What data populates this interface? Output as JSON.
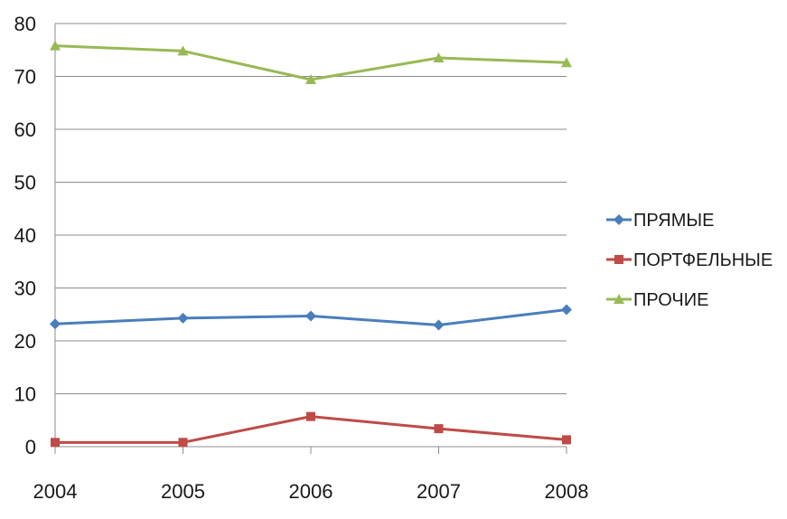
{
  "chart_data": {
    "type": "line",
    "title": "",
    "xlabel": "",
    "ylabel": "",
    "x": [
      2004,
      2005,
      2006,
      2007,
      2008
    ],
    "categories": [
      "2004",
      "2005",
      "2006",
      "2007",
      "2008"
    ],
    "ylim": [
      0,
      80
    ],
    "yticks": [
      0,
      10,
      20,
      30,
      40,
      50,
      60,
      70,
      80
    ],
    "grid": true,
    "legend_position": "right",
    "series": [
      {
        "name": "ПРЯМЫЕ",
        "values": [
          23.2,
          24.3,
          24.7,
          23.0,
          25.9
        ],
        "color": "#4a7ebb",
        "marker": "diamond"
      },
      {
        "name": "ПОРТФЕЛЬНЫЕ",
        "values": [
          0.8,
          0.8,
          5.7,
          3.4,
          1.3
        ],
        "color": "#be4b48",
        "marker": "square"
      },
      {
        "name": "ПРОЧИЕ",
        "values": [
          75.8,
          74.8,
          69.4,
          73.5,
          72.6
        ],
        "color": "#98b954",
        "marker": "triangle"
      }
    ]
  }
}
